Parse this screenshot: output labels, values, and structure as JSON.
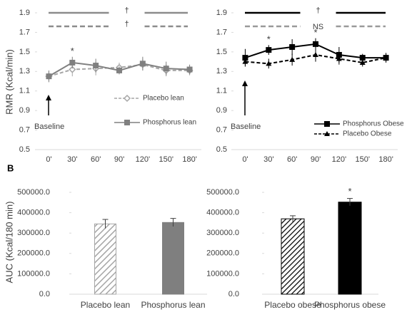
{
  "panel_label": "B",
  "chart_data": [
    {
      "type": "line",
      "ylabel": "RMR (Kcal/min)",
      "categories": [
        "0'",
        "30'",
        "60'",
        "90'",
        "120'",
        "150'",
        "180'"
      ],
      "ylim": [
        0.5,
        1.9
      ],
      "yticks": [
        0.5,
        0.7,
        0.9,
        1.1,
        1.3,
        1.5,
        1.7,
        1.9
      ],
      "series": [
        {
          "name": "Placebo lean",
          "color": "#a6a6a6",
          "dash": true,
          "marker": "diamond",
          "values": [
            1.25,
            1.32,
            1.33,
            1.34,
            1.37,
            1.31,
            1.31
          ],
          "errors": [
            0.05,
            0.07,
            0.07,
            0.05,
            0.06,
            0.06,
            0.05
          ]
        },
        {
          "name": "Phosphorus lean",
          "color": "#808080",
          "dash": false,
          "marker": "square",
          "values": [
            1.25,
            1.39,
            1.36,
            1.31,
            1.38,
            1.33,
            1.32
          ],
          "errors": [
            0.06,
            0.06,
            0.07,
            0.04,
            0.07,
            0.07,
            0.05
          ]
        }
      ],
      "annotations": [
        {
          "text": "†"
        },
        {
          "text": "†"
        },
        {
          "text": "Baseline"
        },
        {
          "text": "*",
          "category": "30'"
        }
      ]
    },
    {
      "type": "line",
      "categories": [
        "0'",
        "30'",
        "60'",
        "90'",
        "120'",
        "150'",
        "180'"
      ],
      "ylim": [
        0.5,
        1.9
      ],
      "yticks": [
        0.5,
        0.7,
        0.9,
        1.1,
        1.3,
        1.5,
        1.7,
        1.9
      ],
      "series": [
        {
          "name": "Placebo Obese",
          "color": "#000000",
          "dash": true,
          "marker": "triangle",
          "values": [
            1.4,
            1.38,
            1.42,
            1.47,
            1.43,
            1.39,
            1.44
          ],
          "errors": [
            0.05,
            0.05,
            0.06,
            0.07,
            0.06,
            0.04,
            0.05
          ]
        },
        {
          "name": "Phosphorus Obese",
          "color": "#000000",
          "dash": false,
          "marker": "square",
          "values": [
            1.44,
            1.52,
            1.55,
            1.58,
            1.47,
            1.44,
            1.44
          ],
          "errors": [
            0.09,
            0.05,
            0.08,
            0.06,
            0.08,
            0.04,
            0.04
          ]
        }
      ],
      "annotations": [
        {
          "text": "†"
        },
        {
          "text": "NS"
        },
        {
          "text": "Baseline"
        },
        {
          "text": "*",
          "category": "30'"
        },
        {
          "text": "*",
          "category": "90'"
        }
      ]
    },
    {
      "type": "bar",
      "ylabel": "AUC (Kcal/180 min)",
      "categories": [
        "Placebo lean",
        "Phosphorus lean"
      ],
      "values": [
        345000,
        352000
      ],
      "errors": [
        22000,
        20000
      ],
      "colors": [
        "#a6a6a6",
        "#7f7f7f"
      ],
      "hatch": [
        true,
        false
      ],
      "ylim": [
        0,
        500000
      ],
      "yticks": [
        {
          "value": 0,
          "label": "0.0"
        },
        {
          "value": 100000,
          "label": "100000.0"
        },
        {
          "value": 200000,
          "label": "200000.0"
        },
        {
          "value": 300000,
          "label": "300000.0"
        },
        {
          "value": 400000,
          "label": "400000.0"
        },
        {
          "value": 500000,
          "label": "500000.0"
        }
      ],
      "annotations": []
    },
    {
      "type": "bar",
      "categories": [
        "Placebo obese",
        "Phosphorus obese"
      ],
      "values": [
        370000,
        452000
      ],
      "errors": [
        15000,
        18000
      ],
      "colors": [
        "#000000",
        "#000000"
      ],
      "hatch": [
        true,
        false
      ],
      "ylim": [
        0,
        500000
      ],
      "yticks": [
        {
          "value": 0,
          "label": "0.0"
        },
        {
          "value": 100000,
          "label": "100000.0"
        },
        {
          "value": 200000,
          "label": "200000.0"
        },
        {
          "value": 300000,
          "label": "300000.0"
        },
        {
          "value": 400000,
          "label": "400000.0"
        },
        {
          "value": 500000,
          "label": "500000.0"
        }
      ],
      "annotations": [
        {
          "text": "*",
          "category": "Phosphorus obese"
        }
      ]
    }
  ]
}
